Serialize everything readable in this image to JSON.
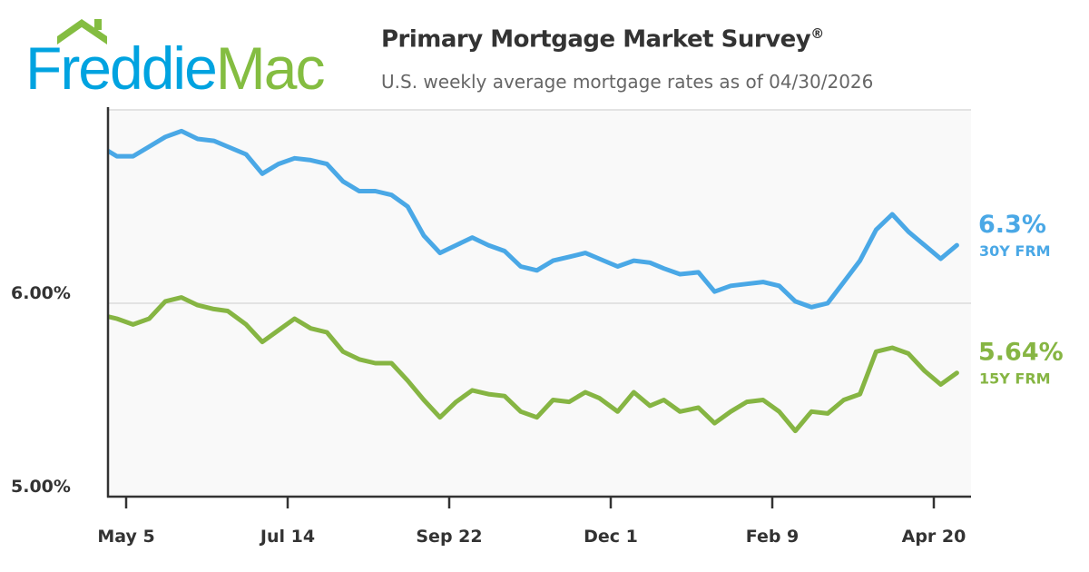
{
  "logo": {
    "text_part1": "Freddie",
    "text_part2": "Mac",
    "colors": {
      "blue": "#00a3e0",
      "green": "#84bd41"
    }
  },
  "header": {
    "title": "Primary Mortgage Market Survey",
    "title_mark": "®",
    "subtitle": "U.S. weekly average mortgage rates as of 04/30/2026"
  },
  "chart_data": {
    "type": "line",
    "title": "Primary Mortgage Market Survey®",
    "subtitle": "U.S. weekly average mortgage rates as of 04/30/2026",
    "xlabel": "",
    "ylabel": "",
    "ylim": [
      5.0,
      7.0
    ],
    "y_ticks": [
      {
        "value": 5.0,
        "label": "5.00%"
      },
      {
        "value": 6.0,
        "label": "6.00%"
      }
    ],
    "x_ticks": [
      {
        "date": "2025-05-05",
        "label": "May 5"
      },
      {
        "date": "2025-07-14",
        "label": "Jul 14"
      },
      {
        "date": "2025-09-22",
        "label": "Sep 22"
      },
      {
        "date": "2025-12-01",
        "label": "Dec 1"
      },
      {
        "date": "2026-02-09",
        "label": "Feb 9"
      },
      {
        "date": "2026-04-20",
        "label": "Apr 20"
      }
    ],
    "grid": "horizontal",
    "x": [
      "2025-04-24",
      "2025-05-01",
      "2025-05-08",
      "2025-05-15",
      "2025-05-22",
      "2025-05-29",
      "2025-06-05",
      "2025-06-12",
      "2025-06-18",
      "2025-06-26",
      "2025-07-03",
      "2025-07-10",
      "2025-07-17",
      "2025-07-24",
      "2025-07-31",
      "2025-08-07",
      "2025-08-14",
      "2025-08-21",
      "2025-08-28",
      "2025-09-04",
      "2025-09-11",
      "2025-09-18",
      "2025-09-25",
      "2025-10-02",
      "2025-10-09",
      "2025-10-16",
      "2025-10-23",
      "2025-10-30",
      "2025-11-06",
      "2025-11-13",
      "2025-11-20",
      "2025-11-26",
      "2025-12-04",
      "2025-12-11",
      "2025-12-18",
      "2025-12-24",
      "2025-12-31",
      "2026-01-08",
      "2026-01-15",
      "2026-01-22",
      "2026-01-29",
      "2026-02-05",
      "2026-02-12",
      "2026-02-19",
      "2026-02-26",
      "2026-03-05",
      "2026-03-12",
      "2026-03-19",
      "2026-03-26",
      "2026-04-02",
      "2026-04-09",
      "2026-04-16",
      "2026-04-23",
      "2026-04-30"
    ],
    "series": [
      {
        "name": "30Y FRM",
        "end_label": "6.3%",
        "color": "#4aa8e6",
        "values": [
          6.81,
          6.76,
          6.76,
          6.81,
          6.86,
          6.89,
          6.85,
          6.84,
          6.81,
          6.77,
          6.67,
          6.72,
          6.75,
          6.74,
          6.72,
          6.63,
          6.58,
          6.58,
          6.56,
          6.5,
          6.35,
          6.26,
          6.3,
          6.34,
          6.3,
          6.27,
          6.19,
          6.17,
          6.22,
          6.24,
          6.26,
          6.23,
          6.19,
          6.22,
          6.21,
          6.18,
          6.15,
          6.16,
          6.06,
          6.09,
          6.1,
          6.11,
          6.09,
          6.01,
          5.98,
          6.0,
          6.11,
          6.22,
          6.38,
          6.46,
          6.37,
          6.3,
          6.23,
          6.3
        ]
      },
      {
        "name": "15Y FRM",
        "end_label": "5.64%",
        "color": "#86b543",
        "values": [
          5.94,
          5.92,
          5.89,
          5.92,
          6.01,
          6.03,
          5.99,
          5.97,
          5.96,
          5.89,
          5.8,
          5.86,
          5.92,
          5.87,
          5.85,
          5.75,
          5.71,
          5.69,
          5.69,
          5.6,
          5.5,
          5.41,
          5.49,
          5.55,
          5.53,
          5.52,
          5.44,
          5.41,
          5.5,
          5.49,
          5.54,
          5.51,
          5.44,
          5.54,
          5.47,
          5.5,
          5.44,
          5.46,
          5.38,
          5.44,
          5.49,
          5.5,
          5.44,
          5.34,
          5.44,
          5.43,
          5.5,
          5.53,
          5.75,
          5.77,
          5.74,
          5.65,
          5.58,
          5.64
        ]
      }
    ]
  }
}
